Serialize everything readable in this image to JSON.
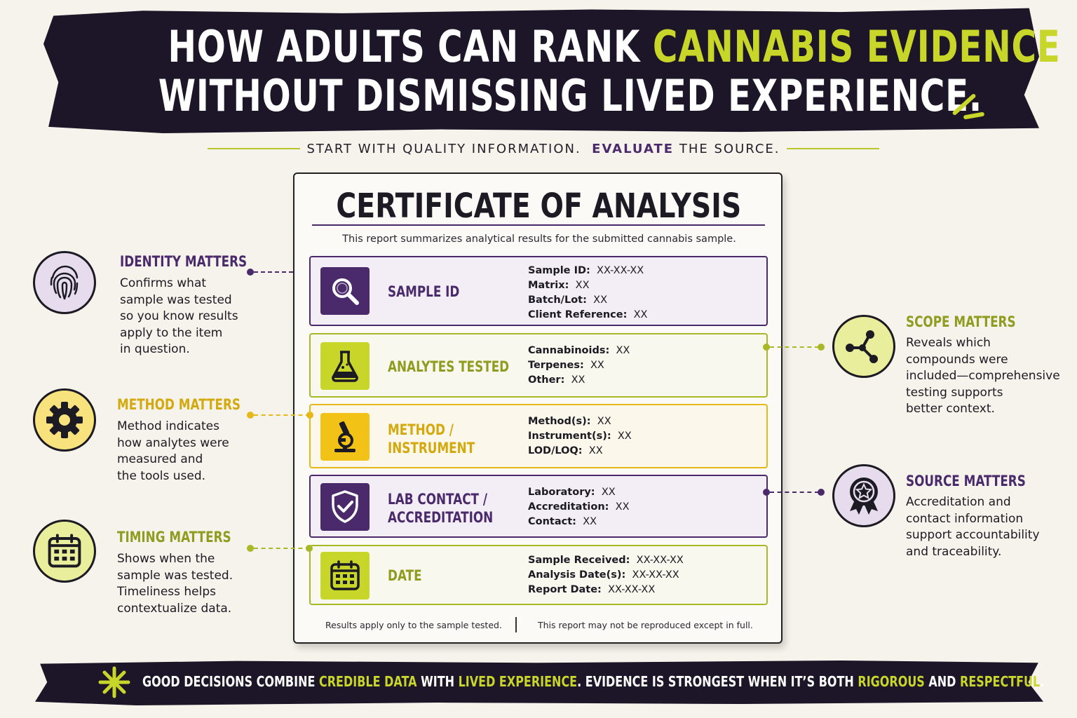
{
  "header": {
    "line1_prefix": "HOW ADULTS CAN RANK ",
    "line1_highlight": "CANNABIS EVIDENCE",
    "line2": "WITHOUT DISMISSING LIVED EXPERIENCE."
  },
  "subtitle": {
    "part1": "START WITH QUALITY INFORMATION.",
    "emphasis": "EVALUATE",
    "part2": "THE SOURCE."
  },
  "certificate": {
    "title": "CERTIFICATE OF ANALYSIS",
    "description": "This report summarizes analytical results for the submitted cannabis sample.",
    "rows": [
      {
        "label_line1": "SAMPLE ID",
        "label_line2": "",
        "icon": "magnifier-icon",
        "fields": [
          {
            "k": "Sample ID:",
            "v": "XX-XX-XX"
          },
          {
            "k": "Matrix:",
            "v": "XX"
          },
          {
            "k": "Batch/Lot:",
            "v": "XX"
          },
          {
            "k": "Client Reference:",
            "v": "XX"
          }
        ]
      },
      {
        "label_line1": "ANALYTES TESTED",
        "label_line2": "",
        "icon": "flask-icon",
        "fields": [
          {
            "k": "Cannabinoids:",
            "v": "XX"
          },
          {
            "k": "Terpenes:",
            "v": "XX"
          },
          {
            "k": "Other:",
            "v": "XX"
          }
        ]
      },
      {
        "label_line1": "METHOD /",
        "label_line2": "INSTRUMENT",
        "icon": "microscope-icon",
        "fields": [
          {
            "k": "Method(s):",
            "v": "XX"
          },
          {
            "k": "Instrument(s):",
            "v": "XX"
          },
          {
            "k": "LOD/LOQ:",
            "v": "XX"
          }
        ]
      },
      {
        "label_line1": "LAB CONTACT /",
        "label_line2": "ACCREDITATION",
        "icon": "shield-check-icon",
        "fields": [
          {
            "k": "Laboratory:",
            "v": "XX"
          },
          {
            "k": "Accreditation:",
            "v": "XX"
          },
          {
            "k": "Contact:",
            "v": "XX"
          }
        ]
      },
      {
        "label_line1": "DATE",
        "label_line2": "",
        "icon": "calendar-icon",
        "fields": [
          {
            "k": "Sample Received:",
            "v": "XX-XX-XX"
          },
          {
            "k": "Analysis Date(s):",
            "v": "XX-XX-XX"
          },
          {
            "k": "Report Date:",
            "v": "XX-XX-XX"
          }
        ]
      }
    ],
    "footer_left": "Results apply only to the sample tested.",
    "footer_right": "This report may not be reproduced except in full."
  },
  "side_items": [
    {
      "heading": "IDENTITY MATTERS",
      "text": "Confirms what\nsample was tested\nso you know results\napply to the item\nin question.",
      "icon": "fingerprint-icon",
      "color": "#4a2a6b"
    },
    {
      "heading": "METHOD MATTERS",
      "text": "Method indicates\nhow analytes were\nmeasured and\nthe tools used.",
      "icon": "gear-icon",
      "color": "#e7b81a"
    },
    {
      "heading": "TIMING MATTERS",
      "text": "Shows when the\nsample was tested.\nTimeliness helps\ncontextualize data.",
      "icon": "calendar-icon",
      "color": "#a9b826"
    },
    {
      "heading": "SCOPE MATTERS",
      "text": "Reveals which\ncompounds were\nincluded—comprehensive\ntesting supports\nbetter context.",
      "icon": "molecule-icon",
      "color": "#a9b826"
    },
    {
      "heading": "SOURCE MATTERS",
      "text": "Accreditation and\ncontact information\nsupport accountability\nand traceability.",
      "icon": "award-badge-icon",
      "color": "#4a2a6b"
    }
  ],
  "footer": {
    "t1": "GOOD DECISIONS COMBINE ",
    "h1": "CREDIBLE DATA",
    "t2": " WITH ",
    "h2": "LIVED EXPERIENCE",
    "t3": ".  EVIDENCE IS STRONGEST WHEN IT’S BOTH ",
    "h3": "RIGOROUS",
    "t4": " AND ",
    "h4": "RESPECTFUL",
    "t5": "."
  },
  "colors": {
    "purple": "#4a2a6b",
    "lime": "#c8d62a",
    "yellow": "#e7b81a",
    "dark": "#1d1528",
    "background": "#f6f3ec"
  }
}
